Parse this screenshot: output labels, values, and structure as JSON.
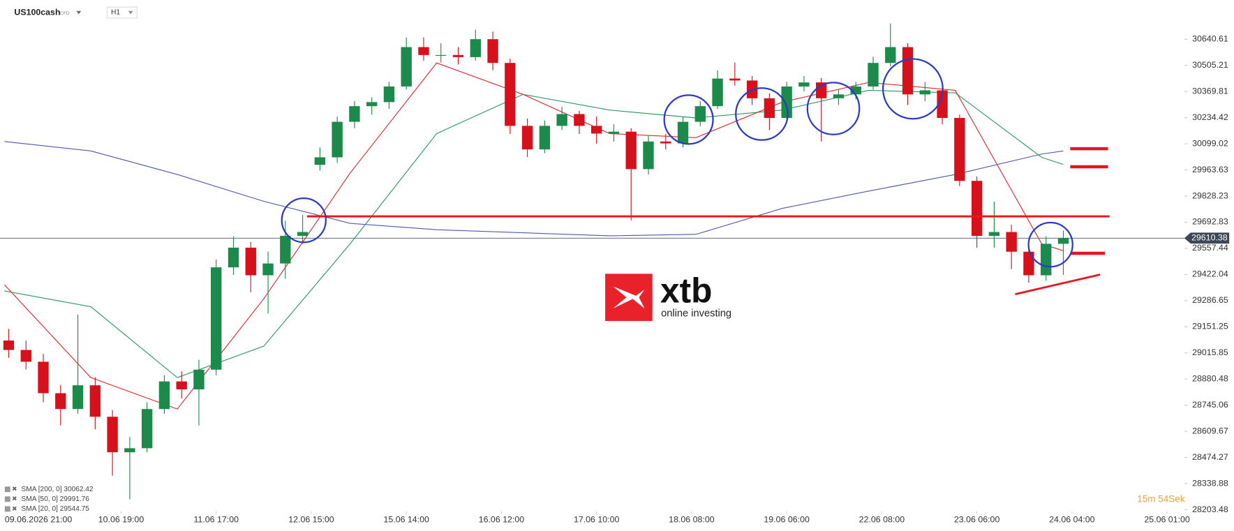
{
  "chart_data": {
    "type": "candlestick",
    "title": "US100cash",
    "badge": "CFD",
    "interval": "H1",
    "up_color": "#1b8a4a",
    "down_color": "#d7111b",
    "x": [
      1,
      5,
      9,
      13,
      17,
      21,
      25,
      29,
      33,
      37,
      41,
      45,
      49,
      53,
      57,
      61,
      65,
      69,
      73,
      77,
      81,
      85,
      89,
      93,
      97,
      101,
      105,
      109,
      113,
      117,
      121,
      125,
      129,
      133,
      137,
      141,
      145,
      149,
      153,
      157,
      161,
      165,
      169,
      173,
      177,
      181,
      185,
      189,
      193,
      197,
      201,
      205,
      209,
      213,
      217,
      221,
      225,
      229,
      233,
      237,
      241,
      245
    ],
    "open": [
      29080,
      29031,
      28970,
      28807,
      28725,
      28848,
      28685,
      28501,
      28522,
      28725,
      28868,
      28827,
      28929,
      29459,
      29561,
      29418,
      29479,
      29622,
      29990,
      30029,
      30213,
      30294,
      30315,
      30396,
      30600,
      30559,
      30559,
      30548,
      30641,
      30518,
      30192,
      30070,
      30192,
      30253,
      30192,
      30152,
      30162,
      29968,
      30111,
      30101,
      30213,
      30294,
      30437,
      30427,
      30335,
      30233,
      30396,
      30417,
      30335,
      30355,
      30396,
      30518,
      30600,
      30355,
      30376,
      30233,
      29907,
      29622,
      29642,
      29540,
      29418,
      29581
    ],
    "high": [
      29140,
      29080,
      29010,
      28850,
      29214,
      28890,
      28720,
      28580,
      28760,
      28900,
      28920,
      28980,
      29500,
      29620,
      29590,
      29540,
      29700,
      29730,
      30080,
      30240,
      30320,
      30340,
      30420,
      30650,
      30650,
      30620,
      30600,
      30690,
      30680,
      30540,
      30230,
      30220,
      30290,
      30270,
      30240,
      30200,
      30180,
      30140,
      30150,
      30240,
      30320,
      30480,
      30520,
      30450,
      30360,
      30420,
      30450,
      30440,
      30380,
      30420,
      30550,
      30722,
      30620,
      30420,
      30400,
      30250,
      29930,
      29800,
      29680,
      29580,
      29620,
      29650
    ],
    "low": [
      28990,
      28930,
      28760,
      28640,
      28700,
      28620,
      28380,
      28257,
      28500,
      28700,
      28780,
      28640,
      28900,
      29420,
      29330,
      29220,
      29400,
      29580,
      29960,
      30000,
      30180,
      30250,
      30280,
      30380,
      30530,
      30520,
      30510,
      30530,
      30480,
      30150,
      30030,
      30050,
      30170,
      30150,
      30100,
      30110,
      29703,
      29940,
      30070,
      30080,
      30190,
      30280,
      30400,
      30300,
      30170,
      30210,
      30370,
      30111,
      30300,
      30330,
      30380,
      30500,
      30300,
      30320,
      30200,
      29880,
      29560,
      29560,
      29450,
      29380,
      29390,
      29420
    ],
    "close": [
      29031,
      28970,
      28807,
      28725,
      28848,
      28685,
      28501,
      28522,
      28725,
      28868,
      28827,
      28929,
      29459,
      29561,
      29418,
      29479,
      29622,
      29642,
      30029,
      30213,
      30294,
      30315,
      30396,
      30600,
      30559,
      30559,
      30548,
      30641,
      30518,
      30192,
      30070,
      30192,
      30253,
      30192,
      30152,
      30162,
      29968,
      30111,
      30101,
      30213,
      30294,
      30437,
      30427,
      30335,
      30233,
      30396,
      30417,
      30335,
      30355,
      30396,
      30518,
      30600,
      30355,
      30376,
      30233,
      29907,
      29622,
      29642,
      29540,
      29418,
      29581,
      29610
    ],
    "xlim": [
      -1,
      273
    ],
    "xticks": [
      {
        "value": 5,
        "label": "09.06.2026 21:00"
      },
      {
        "value": 27,
        "label": "10.06 19:00"
      },
      {
        "value": 49,
        "label": "11.06 17:00"
      },
      {
        "value": 71,
        "label": "12.06 15:00"
      },
      {
        "value": 93,
        "label": "15.06 14:00"
      },
      {
        "value": 115,
        "label": "16.06 12:00"
      },
      {
        "value": 137,
        "label": "17.06 10:00"
      },
      {
        "value": 159,
        "label": "18.06 08:00"
      },
      {
        "value": 181,
        "label": "19.06 06:00"
      },
      {
        "value": 203,
        "label": "22.06 08:00"
      },
      {
        "value": 225,
        "label": "23.06 06:00"
      },
      {
        "value": 247,
        "label": "24.06 04:00"
      },
      {
        "value": 269,
        "label": "25.06 01:00"
      }
    ],
    "ylim": [
      28195,
      30844
    ],
    "yticks": [
      30640.61,
      30505.21,
      30369.81,
      30234.42,
      30099.02,
      29963.63,
      29828.23,
      29692.83,
      29557.44,
      29422.04,
      29286.65,
      29151.25,
      29015.85,
      28880.48,
      28745.06,
      28609.67,
      28474.27,
      28338.88,
      28203.48
    ],
    "last_price": 29610.38,
    "grid": false,
    "series": [
      {
        "name": "SMA [200, 0] 30062.42",
        "color": "#5058a8",
        "x": [
          0,
          20,
          40,
          60,
          80,
          100,
          120,
          140,
          160,
          180,
          200,
          220,
          240,
          245
        ],
        "values": [
          30111,
          30062,
          29940,
          29801,
          29687,
          29654,
          29638,
          29622,
          29630,
          29765,
          29854,
          29940,
          30046,
          30062
        ]
      },
      {
        "name": "SMA [50, 0] 29991.76",
        "color": "#2a9a5e",
        "x": [
          0,
          20,
          40,
          60,
          80,
          100,
          120,
          140,
          160,
          180,
          200,
          220,
          240,
          245
        ],
        "values": [
          29337,
          29255,
          28888,
          29051,
          29581,
          30152,
          30355,
          30274,
          30233,
          30274,
          30376,
          30363,
          30029,
          29992
        ]
      },
      {
        "name": "SMA [20, 0] 29544.75",
        "color": "#e0262b",
        "x": [
          0,
          20,
          40,
          60,
          80,
          100,
          120,
          140,
          160,
          180,
          200,
          220,
          240,
          245
        ],
        "values": [
          29369,
          28888,
          28725,
          29296,
          29948,
          30518,
          30355,
          30152,
          30131,
          30315,
          30417,
          30376,
          29581,
          29545
        ]
      }
    ],
    "brand": "xtb",
    "tagline": "online investing",
    "timer": "15m 54Sek"
  }
}
